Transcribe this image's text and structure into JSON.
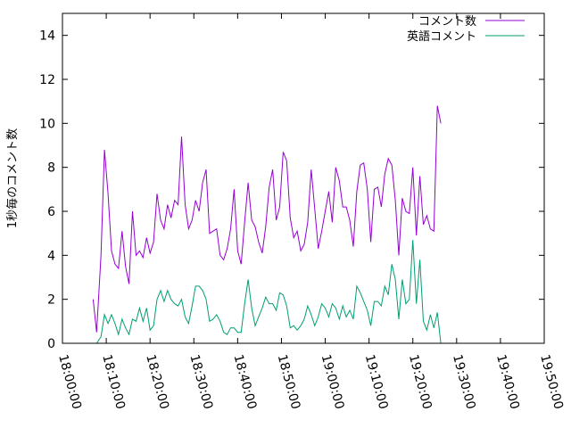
{
  "chart_data": {
    "type": "line",
    "ylabel": "1秒毎のコメント数",
    "ylim": [
      0,
      15
    ],
    "y_ticks": [
      0,
      2,
      4,
      6,
      8,
      10,
      12,
      14
    ],
    "x_axis": {
      "kind": "time",
      "range": [
        "18:00:00",
        "19:50:00"
      ],
      "tick_labels": [
        "18:00:00",
        "18:10:00",
        "18:20:00",
        "18:30:00",
        "18:40:00",
        "18:50:00",
        "19:00:00",
        "19:10:00",
        "19:20:00",
        "19:30:00",
        "19:40:00",
        "19:50:00"
      ]
    },
    "legend_position": "top-right",
    "grid": false,
    "series": [
      {
        "name": "コメント数",
        "color": "#9400d3",
        "points": [
          [
            "18:07:00",
            2.0
          ],
          [
            "18:07:48",
            0.5
          ],
          [
            "18:08:48",
            4.0
          ],
          [
            "18:09:36",
            8.8
          ],
          [
            "18:10:24",
            6.8
          ],
          [
            "18:11:12",
            4.2
          ],
          [
            "18:12:00",
            3.6
          ],
          [
            "18:12:48",
            3.4
          ],
          [
            "18:13:36",
            5.1
          ],
          [
            "18:14:24",
            3.5
          ],
          [
            "18:15:12",
            2.7
          ],
          [
            "18:16:00",
            6.0
          ],
          [
            "18:16:48",
            4.0
          ],
          [
            "18:17:36",
            4.2
          ],
          [
            "18:18:24",
            3.9
          ],
          [
            "18:19:12",
            4.8
          ],
          [
            "18:20:00",
            4.1
          ],
          [
            "18:20:48",
            4.6
          ],
          [
            "18:21:36",
            6.8
          ],
          [
            "18:22:24",
            5.6
          ],
          [
            "18:23:12",
            5.2
          ],
          [
            "18:24:00",
            6.3
          ],
          [
            "18:24:48",
            5.7
          ],
          [
            "18:25:36",
            6.5
          ],
          [
            "18:26:24",
            6.3
          ],
          [
            "18:27:12",
            9.4
          ],
          [
            "18:28:00",
            6.3
          ],
          [
            "18:28:48",
            5.2
          ],
          [
            "18:29:36",
            5.6
          ],
          [
            "18:30:24",
            6.5
          ],
          [
            "18:31:12",
            6.0
          ],
          [
            "18:32:00",
            7.3
          ],
          [
            "18:32:48",
            7.9
          ],
          [
            "18:33:36",
            5.0
          ],
          [
            "18:34:24",
            5.1
          ],
          [
            "18:35:12",
            5.2
          ],
          [
            "18:36:00",
            4.0
          ],
          [
            "18:36:48",
            3.8
          ],
          [
            "18:37:36",
            4.3
          ],
          [
            "18:38:24",
            5.2
          ],
          [
            "18:39:12",
            7.0
          ],
          [
            "18:40:00",
            4.2
          ],
          [
            "18:40:48",
            3.6
          ],
          [
            "18:41:36",
            5.5
          ],
          [
            "18:42:24",
            7.3
          ],
          [
            "18:43:12",
            5.6
          ],
          [
            "18:44:00",
            5.3
          ],
          [
            "18:44:48",
            4.6
          ],
          [
            "18:45:36",
            4.1
          ],
          [
            "18:46:24",
            5.3
          ],
          [
            "18:47:12",
            7.1
          ],
          [
            "18:48:00",
            7.9
          ],
          [
            "18:48:48",
            5.6
          ],
          [
            "18:49:36",
            6.2
          ],
          [
            "18:50:24",
            8.7
          ],
          [
            "18:51:12",
            8.3
          ],
          [
            "18:52:00",
            5.7
          ],
          [
            "18:52:48",
            4.8
          ],
          [
            "18:53:36",
            5.1
          ],
          [
            "18:54:24",
            4.2
          ],
          [
            "18:55:12",
            4.5
          ],
          [
            "18:56:00",
            5.5
          ],
          [
            "18:56:48",
            7.9
          ],
          [
            "18:57:36",
            6.1
          ],
          [
            "18:58:24",
            4.3
          ],
          [
            "18:59:12",
            5.1
          ],
          [
            "19:00:00",
            6.0
          ],
          [
            "19:00:48",
            6.9
          ],
          [
            "19:01:36",
            5.5
          ],
          [
            "19:02:24",
            8.0
          ],
          [
            "19:03:12",
            7.4
          ],
          [
            "19:04:00",
            6.2
          ],
          [
            "19:04:48",
            6.2
          ],
          [
            "19:05:36",
            5.6
          ],
          [
            "19:06:24",
            4.4
          ],
          [
            "19:07:12",
            6.9
          ],
          [
            "19:08:00",
            8.1
          ],
          [
            "19:08:48",
            8.2
          ],
          [
            "19:09:36",
            7.0
          ],
          [
            "19:10:24",
            4.6
          ],
          [
            "19:11:12",
            7.0
          ],
          [
            "19:12:00",
            7.1
          ],
          [
            "19:12:48",
            6.2
          ],
          [
            "19:13:36",
            7.7
          ],
          [
            "19:14:24",
            8.4
          ],
          [
            "19:15:12",
            8.1
          ],
          [
            "19:16:00",
            6.5
          ],
          [
            "19:16:48",
            4.0
          ],
          [
            "19:17:36",
            6.6
          ],
          [
            "19:18:24",
            6.0
          ],
          [
            "19:19:12",
            5.9
          ],
          [
            "19:20:00",
            8.0
          ],
          [
            "19:20:48",
            4.9
          ],
          [
            "19:21:36",
            7.6
          ],
          [
            "19:22:24",
            5.4
          ],
          [
            "19:23:12",
            5.8
          ],
          [
            "19:24:00",
            5.2
          ],
          [
            "19:24:48",
            5.1
          ],
          [
            "19:25:36",
            10.8
          ],
          [
            "19:26:24",
            10.0
          ]
        ]
      },
      {
        "name": "英語コメント",
        "color": "#009e73",
        "points": [
          [
            "18:07:48",
            0.0
          ],
          [
            "18:08:48",
            0.3
          ],
          [
            "18:09:36",
            1.3
          ],
          [
            "18:10:24",
            0.9
          ],
          [
            "18:11:12",
            1.3
          ],
          [
            "18:12:00",
            0.9
          ],
          [
            "18:12:48",
            0.4
          ],
          [
            "18:13:36",
            1.1
          ],
          [
            "18:14:24",
            0.7
          ],
          [
            "18:15:12",
            0.4
          ],
          [
            "18:16:00",
            1.1
          ],
          [
            "18:16:48",
            1.0
          ],
          [
            "18:17:36",
            1.6
          ],
          [
            "18:18:24",
            1.0
          ],
          [
            "18:19:12",
            1.6
          ],
          [
            "18:20:00",
            0.6
          ],
          [
            "18:20:48",
            0.8
          ],
          [
            "18:21:36",
            2.0
          ],
          [
            "18:22:24",
            2.4
          ],
          [
            "18:23:12",
            1.9
          ],
          [
            "18:24:00",
            2.4
          ],
          [
            "18:24:48",
            2.0
          ],
          [
            "18:25:36",
            1.8
          ],
          [
            "18:26:24",
            1.7
          ],
          [
            "18:27:12",
            2.0
          ],
          [
            "18:28:00",
            1.2
          ],
          [
            "18:28:48",
            0.9
          ],
          [
            "18:29:36",
            1.7
          ],
          [
            "18:30:24",
            2.6
          ],
          [
            "18:31:12",
            2.6
          ],
          [
            "18:32:00",
            2.4
          ],
          [
            "18:32:48",
            2.0
          ],
          [
            "18:33:36",
            1.0
          ],
          [
            "18:34:24",
            1.1
          ],
          [
            "18:35:12",
            1.3
          ],
          [
            "18:36:00",
            1.0
          ],
          [
            "18:36:48",
            0.5
          ],
          [
            "18:37:36",
            0.4
          ],
          [
            "18:38:24",
            0.7
          ],
          [
            "18:39:12",
            0.7
          ],
          [
            "18:40:00",
            0.5
          ],
          [
            "18:40:48",
            0.5
          ],
          [
            "18:41:36",
            1.8
          ],
          [
            "18:42:24",
            2.9
          ],
          [
            "18:43:12",
            1.6
          ],
          [
            "18:44:00",
            0.8
          ],
          [
            "18:44:48",
            1.2
          ],
          [
            "18:45:36",
            1.6
          ],
          [
            "18:46:24",
            2.1
          ],
          [
            "18:47:12",
            1.8
          ],
          [
            "18:48:00",
            1.8
          ],
          [
            "18:48:48",
            1.5
          ],
          [
            "18:49:36",
            2.3
          ],
          [
            "18:50:24",
            2.2
          ],
          [
            "18:51:12",
            1.7
          ],
          [
            "18:52:00",
            0.7
          ],
          [
            "18:52:48",
            0.8
          ],
          [
            "18:53:36",
            0.6
          ],
          [
            "18:54:24",
            0.8
          ],
          [
            "18:55:12",
            1.1
          ],
          [
            "18:56:00",
            1.7
          ],
          [
            "18:56:48",
            1.3
          ],
          [
            "18:57:36",
            0.8
          ],
          [
            "18:58:24",
            1.2
          ],
          [
            "18:59:12",
            1.8
          ],
          [
            "19:00:00",
            1.6
          ],
          [
            "19:00:48",
            1.2
          ],
          [
            "19:01:36",
            1.8
          ],
          [
            "19:02:24",
            1.6
          ],
          [
            "19:03:12",
            1.1
          ],
          [
            "19:04:00",
            1.7
          ],
          [
            "19:04:48",
            1.2
          ],
          [
            "19:05:36",
            1.5
          ],
          [
            "19:06:24",
            1.1
          ],
          [
            "19:07:12",
            2.6
          ],
          [
            "19:08:00",
            2.3
          ],
          [
            "19:08:48",
            1.9
          ],
          [
            "19:09:36",
            1.5
          ],
          [
            "19:10:24",
            0.8
          ],
          [
            "19:11:12",
            1.9
          ],
          [
            "19:12:00",
            1.9
          ],
          [
            "19:12:48",
            1.7
          ],
          [
            "19:13:36",
            2.6
          ],
          [
            "19:14:24",
            2.2
          ],
          [
            "19:15:12",
            3.6
          ],
          [
            "19:16:00",
            2.9
          ],
          [
            "19:16:48",
            1.1
          ],
          [
            "19:17:36",
            2.9
          ],
          [
            "19:18:24",
            1.8
          ],
          [
            "19:19:12",
            2.0
          ],
          [
            "19:20:00",
            4.7
          ],
          [
            "19:20:48",
            1.8
          ],
          [
            "19:21:36",
            3.8
          ],
          [
            "19:22:24",
            1.0
          ],
          [
            "19:23:12",
            0.6
          ],
          [
            "19:24:00",
            1.3
          ],
          [
            "19:24:48",
            0.7
          ],
          [
            "19:25:36",
            1.4
          ],
          [
            "19:26:24",
            0.0
          ]
        ]
      }
    ]
  }
}
